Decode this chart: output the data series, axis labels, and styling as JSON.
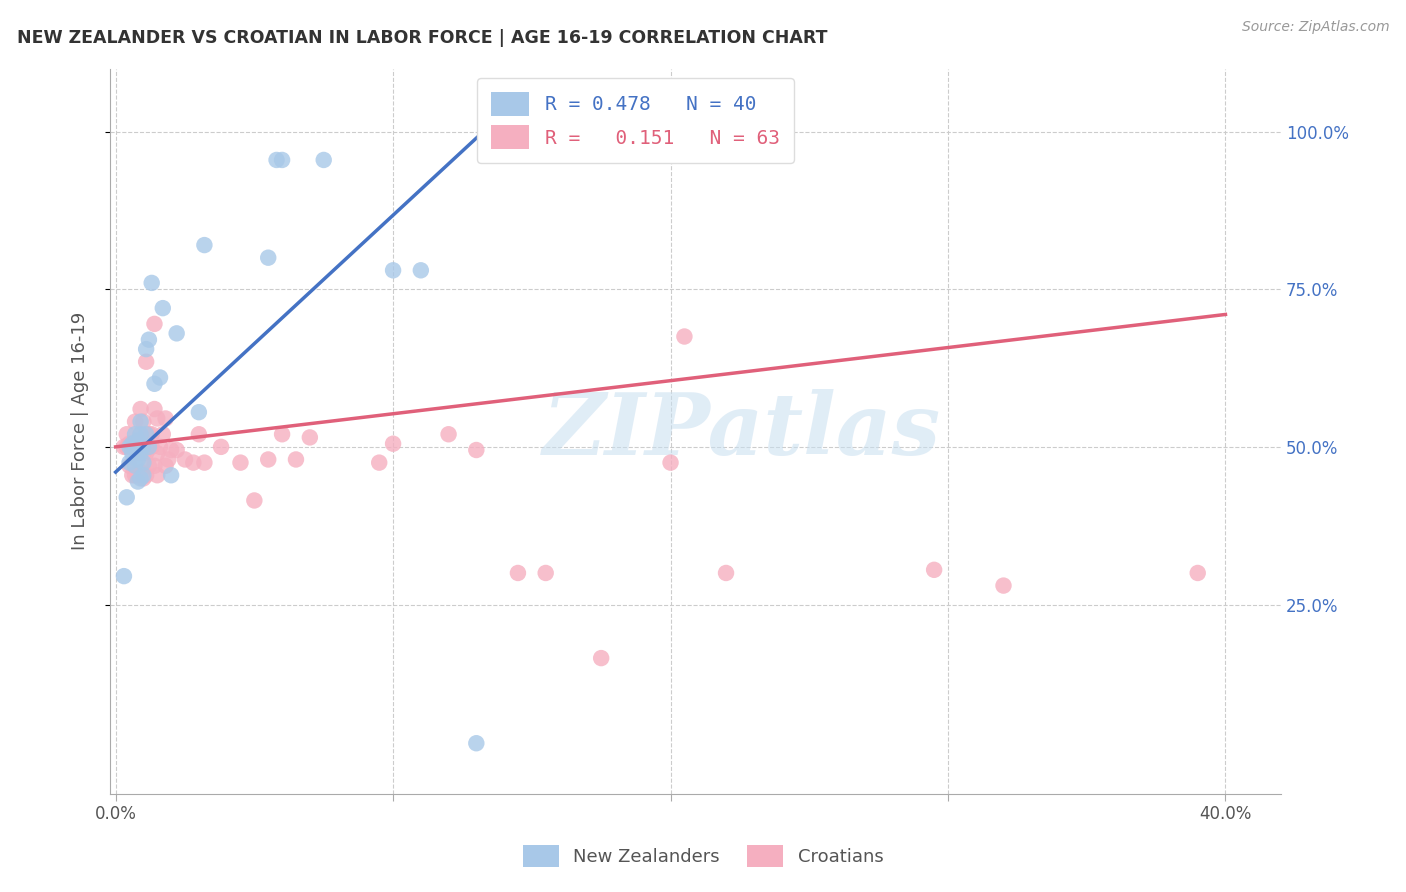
{
  "title": "NEW ZEALANDER VS CROATIAN IN LABOR FORCE | AGE 16-19 CORRELATION CHART",
  "source": "Source: ZipAtlas.com",
  "ylabel": "In Labor Force | Age 16-19",
  "x_lim": [
    -0.002,
    0.42
  ],
  "y_lim": [
    -0.05,
    1.1
  ],
  "r_nz": 0.478,
  "n_nz": 40,
  "r_cr": 0.151,
  "n_cr": 63,
  "nz_color": "#a8c8e8",
  "cr_color": "#f5afc0",
  "nz_line_color": "#4472c4",
  "cr_line_color": "#e0607a",
  "legend_label_nz": "New Zealanders",
  "legend_label_cr": "Croatians",
  "watermark": "ZIPatlas",
  "nz_line_x0": 0.0,
  "nz_line_y0": 0.46,
  "nz_line_x1": 0.135,
  "nz_line_y1": 1.01,
  "cr_line_x0": 0.0,
  "cr_line_y0": 0.5,
  "cr_line_x1": 0.4,
  "cr_line_y1": 0.71,
  "nz_x": [
    0.003,
    0.004,
    0.005,
    0.005,
    0.006,
    0.006,
    0.006,
    0.007,
    0.007,
    0.007,
    0.007,
    0.008,
    0.008,
    0.008,
    0.009,
    0.009,
    0.009,
    0.009,
    0.01,
    0.01,
    0.01,
    0.011,
    0.011,
    0.012,
    0.012,
    0.013,
    0.014,
    0.016,
    0.017,
    0.02,
    0.022,
    0.03,
    0.032,
    0.055,
    0.058,
    0.06,
    0.075,
    0.1,
    0.11,
    0.13
  ],
  "nz_y": [
    0.295,
    0.42,
    0.5,
    0.475,
    0.5,
    0.49,
    0.505,
    0.47,
    0.5,
    0.5,
    0.52,
    0.445,
    0.48,
    0.51,
    0.45,
    0.49,
    0.52,
    0.54,
    0.455,
    0.475,
    0.5,
    0.52,
    0.655,
    0.5,
    0.67,
    0.76,
    0.6,
    0.61,
    0.72,
    0.455,
    0.68,
    0.555,
    0.82,
    0.8,
    0.955,
    0.955,
    0.955,
    0.78,
    0.78,
    0.03
  ],
  "cr_x": [
    0.003,
    0.004,
    0.004,
    0.005,
    0.005,
    0.006,
    0.006,
    0.007,
    0.007,
    0.007,
    0.008,
    0.008,
    0.009,
    0.009,
    0.009,
    0.009,
    0.01,
    0.01,
    0.01,
    0.011,
    0.011,
    0.011,
    0.012,
    0.012,
    0.013,
    0.013,
    0.014,
    0.014,
    0.014,
    0.015,
    0.015,
    0.015,
    0.016,
    0.017,
    0.018,
    0.018,
    0.019,
    0.02,
    0.022,
    0.025,
    0.028,
    0.03,
    0.032,
    0.038,
    0.045,
    0.05,
    0.055,
    0.06,
    0.065,
    0.07,
    0.095,
    0.1,
    0.12,
    0.13,
    0.145,
    0.155,
    0.175,
    0.2,
    0.205,
    0.22,
    0.295,
    0.32,
    0.39
  ],
  "cr_y": [
    0.5,
    0.5,
    0.52,
    0.47,
    0.505,
    0.455,
    0.5,
    0.455,
    0.5,
    0.54,
    0.455,
    0.49,
    0.46,
    0.49,
    0.52,
    0.56,
    0.45,
    0.49,
    0.54,
    0.455,
    0.49,
    0.635,
    0.47,
    0.52,
    0.5,
    0.52,
    0.47,
    0.56,
    0.695,
    0.455,
    0.49,
    0.545,
    0.5,
    0.52,
    0.47,
    0.545,
    0.48,
    0.495,
    0.495,
    0.48,
    0.475,
    0.52,
    0.475,
    0.5,
    0.475,
    0.415,
    0.48,
    0.52,
    0.48,
    0.515,
    0.475,
    0.505,
    0.52,
    0.495,
    0.3,
    0.3,
    0.165,
    0.475,
    0.675,
    0.3,
    0.305,
    0.28,
    0.3
  ]
}
